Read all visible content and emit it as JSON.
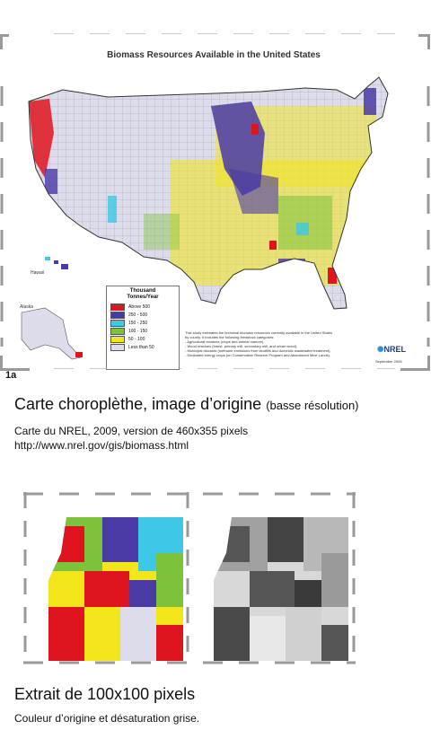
{
  "map": {
    "title": "Biomass Resources Available in the United States",
    "legend": {
      "title_line1": "Thousand",
      "title_line2": "Tonnes/Year",
      "items": [
        {
          "label": "Above 500",
          "color": "#e0141e"
        },
        {
          "label": "250 - 500",
          "color": "#4a3aa6"
        },
        {
          "label": "150 - 250",
          "color": "#3cc8e6"
        },
        {
          "label": "100 - 150",
          "color": "#7cc23a"
        },
        {
          "label": "50 - 100",
          "color": "#f2e61a"
        },
        {
          "label": "Less than 50",
          "color": "#dcdcea"
        }
      ]
    },
    "inset_labels": {
      "hawaii": "Hawaii",
      "alaska": "Alaska"
    },
    "notes": [
      "This study estimates the technical biomass resources currently available in the United States",
      "by county. It includes the following feedstock categories:",
      "- Agricultural residues (crops and animal manure),",
      "- Wood residues (forest, primary mill, secondary mill, and urban wood),",
      "- Municipal discards (methane emissions from landfills and domestic wastewater treatment),",
      "- Dedicated energy crops (on Conservation Reserve Program and Abandoned Mine Lands)."
    ],
    "logo_text": "NREL",
    "date": "September 2005"
  },
  "figure_label": "1a",
  "heading1": {
    "main": "Carte choroplèthe, image d’origine",
    "sub": "(basse résolution)"
  },
  "caption1": {
    "line1": "Carte du NREL, 2009,  version de 460x355 pixels",
    "line2": "http://www.nrel.gov/gis/biomass.html"
  },
  "heading2": "Extrait de 100x100 pixels",
  "caption2": "Couleur d’origine et désaturation grise."
}
